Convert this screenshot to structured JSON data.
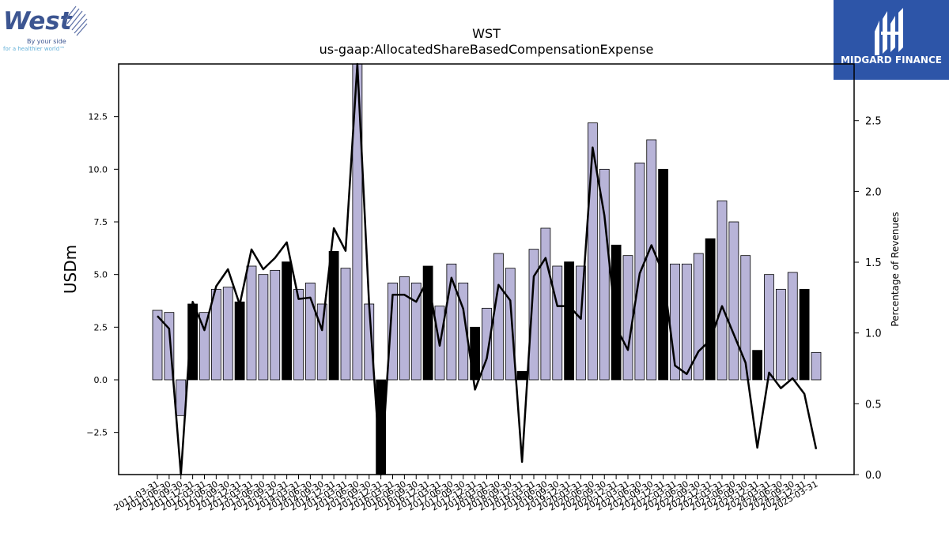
{
  "company_logo": {
    "name": "West",
    "tagline_1": "By your side",
    "tagline_2": "for a healthier world™"
  },
  "sponsor_logo": {
    "name": "MIDGARD FINANCE"
  },
  "chart_data": {
    "type": "bar",
    "title": "WST",
    "subtitle": "us-gaap:AllocatedShareBasedCompensationExpense",
    "ylabel": "USDm",
    "y2label": "Percentage of Revenues",
    "ylim": [
      -4.5,
      15.0
    ],
    "y2lim": [
      0.0,
      2.9
    ],
    "yticks": [
      "−2.5",
      "0.0",
      "2.5",
      "5.0",
      "7.5",
      "10.0",
      "12.5"
    ],
    "y2ticks": [
      "0.0",
      "0.5",
      "1.0",
      "1.5",
      "2.0",
      "2.5"
    ],
    "colors": {
      "bar": "#b8b4d8",
      "bar_q4": "#000000",
      "line": "#000000"
    },
    "categories": [
      "2011-03-31",
      "2011-06-30",
      "2011-09-30",
      "2011-12-31",
      "2012-03-31",
      "2012-06-30",
      "2012-09-30",
      "2012-12-31",
      "2013-03-31",
      "2013-06-30",
      "2013-09-30",
      "2013-12-31",
      "2014-03-31",
      "2014-06-30",
      "2014-09-30",
      "2014-12-31",
      "2015-03-31",
      "2015-06-30",
      "2015-09-30",
      "2015-12-31",
      "2016-03-31",
      "2016-06-30",
      "2016-09-30",
      "2016-12-31",
      "2017-03-31",
      "2017-06-30",
      "2017-09-30",
      "2017-12-31",
      "2018-03-31",
      "2018-06-30",
      "2018-09-30",
      "2018-12-31",
      "2019-03-31",
      "2019-06-30",
      "2019-09-30",
      "2019-12-31",
      "2020-03-31",
      "2020-06-30",
      "2020-09-30",
      "2020-12-31",
      "2021-03-31",
      "2021-06-30",
      "2021-09-30",
      "2021-12-31",
      "2022-03-31",
      "2022-06-30",
      "2022-09-30",
      "2022-12-31",
      "2023-03-31",
      "2023-06-30",
      "2023-09-30",
      "2023-12-31",
      "2024-03-31",
      "2024-06-30",
      "2024-09-30",
      "2024-12-31",
      "2025-03-31"
    ],
    "series": [
      {
        "kind": "bar",
        "values": [
          3.3,
          3.2,
          -1.7,
          3.6,
          3.2,
          4.3,
          4.4,
          3.7,
          5.4,
          5.0,
          5.2,
          5.6,
          4.3,
          4.6,
          3.6,
          6.1,
          5.3,
          15.5,
          3.6,
          -5.5,
          4.6,
          4.9,
          4.6,
          5.4,
          3.5,
          5.5,
          4.6,
          2.5,
          3.4,
          6.0,
          5.3,
          0.4,
          6.2,
          7.2,
          5.4,
          5.6,
          5.4,
          12.2,
          10.0,
          6.4,
          5.9,
          10.3,
          11.4,
          10.0,
          5.5,
          5.5,
          6.0,
          6.7,
          8.5,
          7.5,
          5.9,
          1.4,
          5.0,
          4.3,
          5.1,
          4.3,
          1.3
        ]
      },
      {
        "kind": "line",
        "axis": "right",
        "values": [
          1.12,
          1.03,
          -0.2,
          1.22,
          1.02,
          1.33,
          1.45,
          1.2,
          1.59,
          1.45,
          1.53,
          1.64,
          1.24,
          1.25,
          1.02,
          1.74,
          1.58,
          3.3,
          1.2,
          -0.3,
          1.27,
          1.27,
          1.22,
          1.38,
          0.91,
          1.39,
          1.17,
          0.6,
          0.82,
          1.34,
          1.23,
          0.09,
          1.4,
          1.53,
          1.19,
          1.19,
          1.1,
          2.31,
          1.83,
          1.04,
          0.88,
          1.42,
          1.62,
          1.42,
          0.77,
          0.71,
          0.87,
          0.95,
          1.19,
          0.99,
          0.79,
          0.19,
          0.72,
          0.61,
          0.68,
          0.57,
          0.18
        ]
      }
    ]
  }
}
